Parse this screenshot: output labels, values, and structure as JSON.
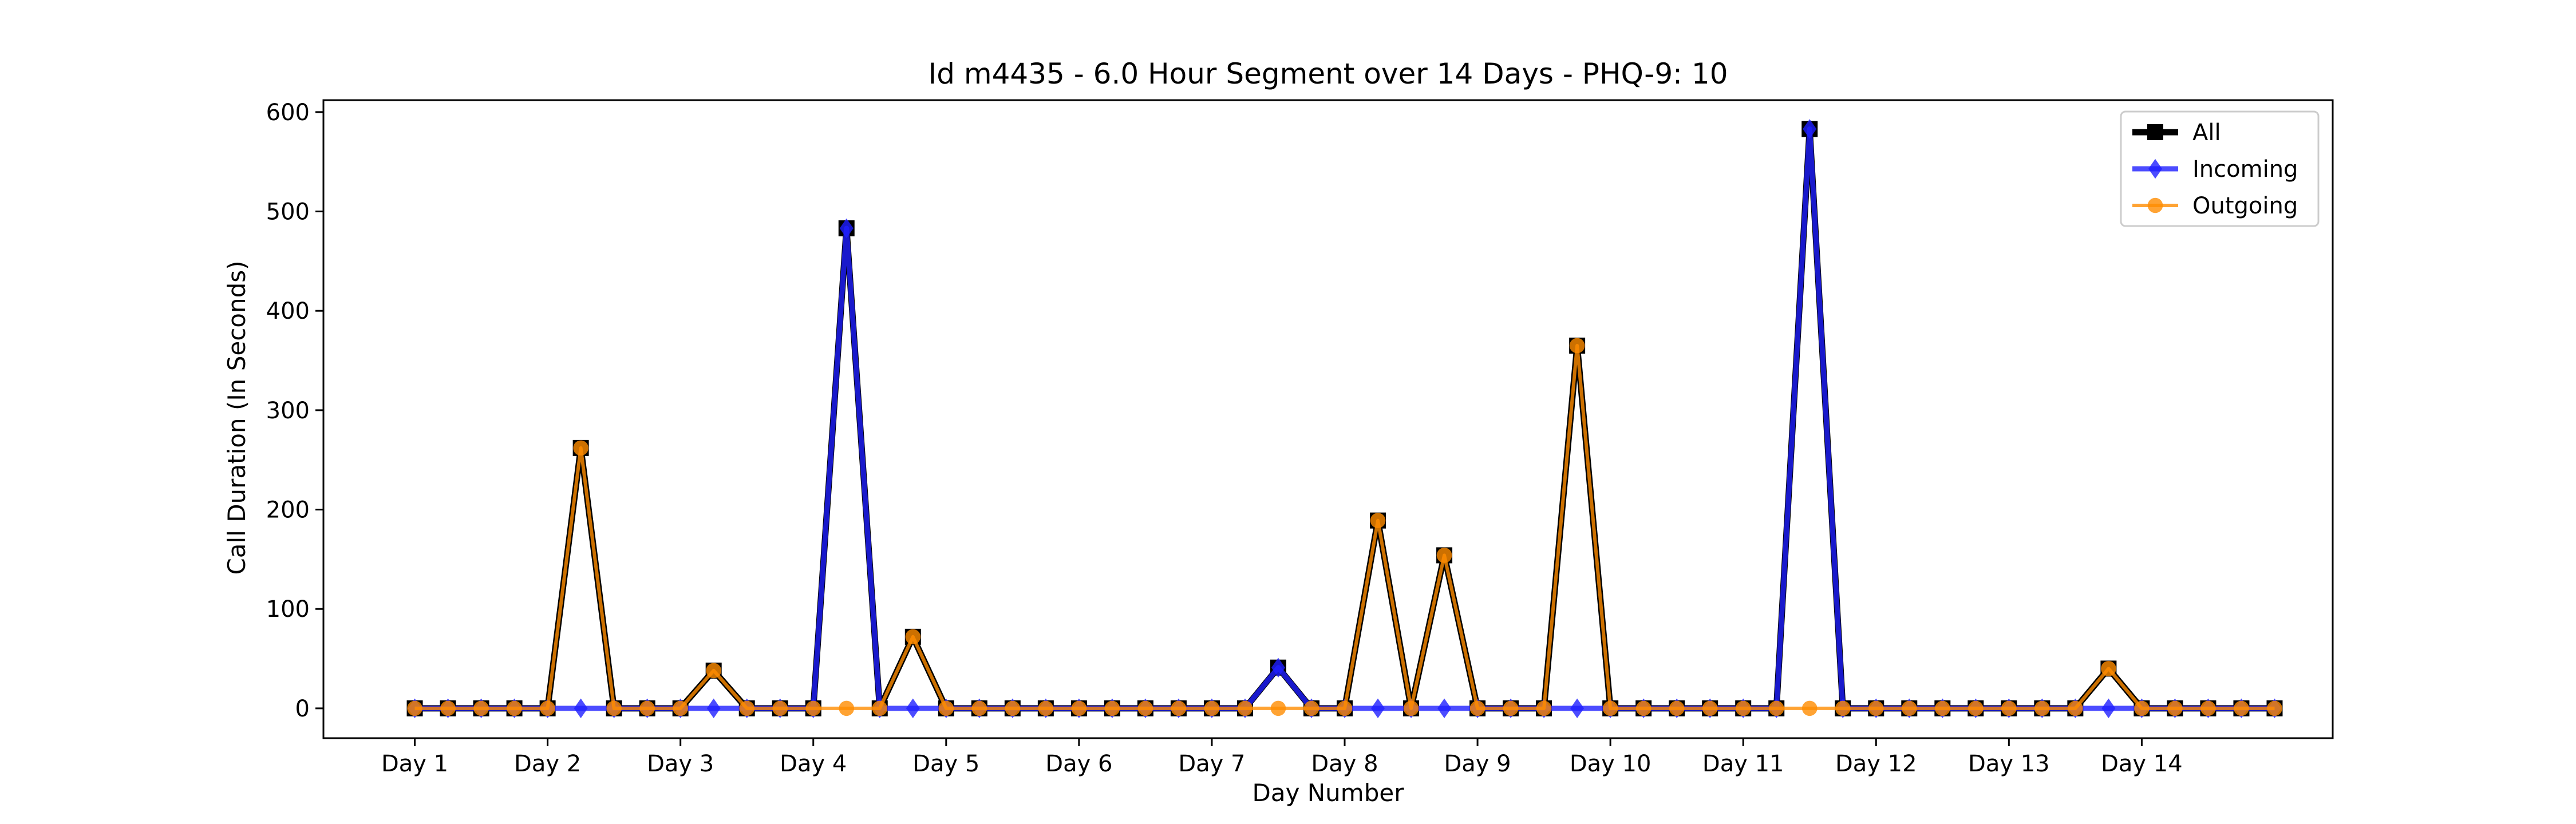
{
  "chart_data": {
    "type": "line",
    "title": "Id m4435 - 6.0 Hour Segment over 14 Days - PHQ-9: 10",
    "xlabel": "Day Number",
    "ylabel": "Call Duration (In Seconds)",
    "ylim": [
      -30,
      612
    ],
    "yticks": [
      0,
      100,
      200,
      300,
      400,
      500,
      600
    ],
    "xlim": [
      -2.75,
      57.75
    ],
    "day_labels": [
      "Day 1",
      "Day 2",
      "Day 3",
      "Day 4",
      "Day 5",
      "Day 6",
      "Day 7",
      "Day 8",
      "Day 9",
      "Day 10",
      "Day 11",
      "Day 12",
      "Day 13",
      "Day 14"
    ],
    "day_tick_positions": [
      0,
      4,
      8,
      12,
      16,
      20,
      24,
      28,
      32,
      36,
      40,
      44,
      48,
      52
    ],
    "grid": false,
    "legend_position": "top-right",
    "series": [
      {
        "name": "All",
        "color": "#000000",
        "marker": "square",
        "values": [
          0,
          0,
          0,
          0,
          0,
          262,
          0,
          0,
          0,
          38,
          0,
          0,
          0,
          483,
          0,
          72,
          0,
          0,
          0,
          0,
          0,
          0,
          0,
          0,
          0,
          0,
          41,
          0,
          0,
          189,
          0,
          154,
          0,
          0,
          0,
          365,
          0,
          0,
          0,
          0,
          0,
          0,
          583,
          0,
          0,
          0,
          0,
          0,
          0,
          0,
          0,
          40,
          0,
          0,
          0,
          0,
          0
        ]
      },
      {
        "name": "Incoming",
        "color": "#1f1fff",
        "marker": "diamond",
        "values": [
          0,
          0,
          0,
          0,
          0,
          0,
          0,
          0,
          0,
          0,
          0,
          0,
          0,
          483,
          0,
          0,
          0,
          0,
          0,
          0,
          0,
          0,
          0,
          0,
          0,
          0,
          41,
          0,
          0,
          0,
          0,
          0,
          0,
          0,
          0,
          0,
          0,
          0,
          0,
          0,
          0,
          0,
          583,
          0,
          0,
          0,
          0,
          0,
          0,
          0,
          0,
          0,
          0,
          0,
          0,
          0,
          0
        ]
      },
      {
        "name": "Outgoing",
        "color": "#ff8c00",
        "marker": "circle",
        "values": [
          0,
          0,
          0,
          0,
          0,
          262,
          0,
          0,
          0,
          38,
          0,
          0,
          0,
          0,
          0,
          72,
          0,
          0,
          0,
          0,
          0,
          0,
          0,
          0,
          0,
          0,
          0,
          0,
          0,
          189,
          0,
          154,
          0,
          0,
          0,
          365,
          0,
          0,
          0,
          0,
          0,
          0,
          0,
          0,
          0,
          0,
          0,
          0,
          0,
          0,
          0,
          40,
          0,
          0,
          0,
          0,
          0
        ]
      }
    ]
  }
}
